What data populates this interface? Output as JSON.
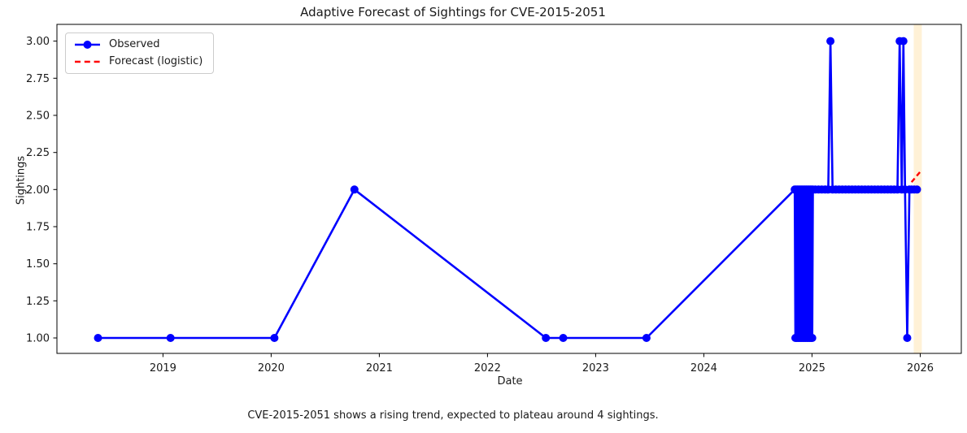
{
  "chart_data": {
    "type": "line",
    "title": "Adaptive Forecast of Sightings for CVE-2015-2051",
    "xlabel": "Date",
    "ylabel": "Sightings",
    "caption": "CVE-2015-2051 shows a rising trend, expected to plateau around 4 sightings.",
    "grid": false,
    "x_axis": {
      "ticks": [
        2019,
        2020,
        2021,
        2022,
        2023,
        2024,
        2025,
        2026
      ],
      "labels": [
        "2019",
        "2020",
        "2021",
        "2022",
        "2023",
        "2024",
        "2025",
        "2026"
      ],
      "range": [
        2018.02,
        2026.38
      ]
    },
    "y_axis": {
      "ticks": [
        1.0,
        1.25,
        1.5,
        1.75,
        2.0,
        2.25,
        2.5,
        2.75,
        3.0
      ],
      "labels": [
        "1.00",
        "1.25",
        "1.50",
        "1.75",
        "2.00",
        "2.25",
        "2.50",
        "2.75",
        "3.00"
      ],
      "range": [
        0.896,
        3.113
      ]
    },
    "legend": {
      "position": "upper left",
      "entries": [
        {
          "label": "Observed",
          "color": "#0000FF",
          "style": "solid-circle-marker"
        },
        {
          "label": "Forecast (logistic)",
          "color": "#FF0000",
          "style": "dashed"
        }
      ]
    },
    "series": [
      {
        "name": "Observed",
        "color": "#0000FF",
        "marker": "circle",
        "points": [
          [
            2018.4,
            1
          ],
          [
            2019.07,
            1
          ],
          [
            2020.03,
            1
          ],
          [
            2020.77,
            2
          ],
          [
            2022.54,
            1
          ],
          [
            2022.7,
            1
          ],
          [
            2023.47,
            1
          ],
          [
            2024.84,
            2
          ],
          [
            2024.846,
            1
          ],
          [
            2024.852,
            2
          ],
          [
            2024.858,
            1
          ],
          [
            2024.864,
            2
          ],
          [
            2024.87,
            1
          ],
          [
            2024.876,
            2
          ],
          [
            2024.882,
            1
          ],
          [
            2024.888,
            2
          ],
          [
            2024.894,
            1
          ],
          [
            2024.9,
            2
          ],
          [
            2024.906,
            1
          ],
          [
            2024.912,
            2
          ],
          [
            2024.918,
            1
          ],
          [
            2024.924,
            2
          ],
          [
            2024.93,
            1
          ],
          [
            2024.936,
            2
          ],
          [
            2024.942,
            1
          ],
          [
            2024.948,
            2
          ],
          [
            2024.954,
            1
          ],
          [
            2024.96,
            2
          ],
          [
            2024.966,
            1
          ],
          [
            2024.972,
            2
          ],
          [
            2024.978,
            1
          ],
          [
            2024.984,
            2
          ],
          [
            2024.99,
            1
          ],
          [
            2024.996,
            2
          ],
          [
            2025.002,
            1
          ],
          [
            2025.008,
            2
          ],
          [
            2025.03,
            2
          ],
          [
            2025.06,
            2
          ],
          [
            2025.09,
            2
          ],
          [
            2025.12,
            2
          ],
          [
            2025.15,
            2
          ],
          [
            2025.17,
            3
          ],
          [
            2025.19,
            2
          ],
          [
            2025.22,
            2
          ],
          [
            2025.25,
            2
          ],
          [
            2025.28,
            2
          ],
          [
            2025.31,
            2
          ],
          [
            2025.34,
            2
          ],
          [
            2025.37,
            2
          ],
          [
            2025.4,
            2
          ],
          [
            2025.43,
            2
          ],
          [
            2025.46,
            2
          ],
          [
            2025.49,
            2
          ],
          [
            2025.52,
            2
          ],
          [
            2025.55,
            2
          ],
          [
            2025.58,
            2
          ],
          [
            2025.61,
            2
          ],
          [
            2025.64,
            2
          ],
          [
            2025.67,
            2
          ],
          [
            2025.7,
            2
          ],
          [
            2025.73,
            2
          ],
          [
            2025.76,
            2
          ],
          [
            2025.79,
            2
          ],
          [
            2025.81,
            3
          ],
          [
            2025.83,
            2
          ],
          [
            2025.845,
            3
          ],
          [
            2025.86,
            2
          ],
          [
            2025.88,
            1
          ],
          [
            2025.9,
            2
          ],
          [
            2025.92,
            2
          ],
          [
            2025.945,
            2
          ],
          [
            2025.97,
            2
          ]
        ]
      },
      {
        "name": "Forecast (logistic)",
        "color": "#FF0000",
        "dashed": true,
        "points": [
          [
            2025.92,
            2.05
          ],
          [
            2025.96,
            2.085
          ],
          [
            2026.0,
            2.12
          ]
        ]
      }
    ],
    "forecast_region": {
      "x_start": 2025.94,
      "x_end": 2026.015,
      "fill_color": "#FFA500",
      "fill_opacity": 0.16
    },
    "colors": {
      "observed": "#0000FF",
      "forecast": "#FF0000",
      "axes": "#000000",
      "text": "#1a1a1a"
    }
  }
}
